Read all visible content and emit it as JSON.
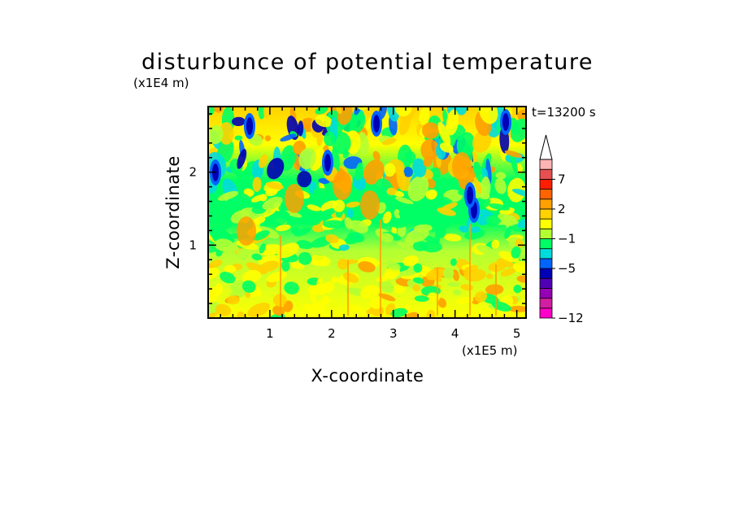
{
  "chart_data": {
    "type": "heatmap",
    "title": "disturbunce of potential temperature",
    "xlabel": "X-coordinate",
    "ylabel": "Z-coordinate",
    "x_unit": "(x1E5 m)",
    "y_unit": "(x1E4 m)",
    "time_label": "t=13200 s",
    "xlim": [
      0,
      5.15
    ],
    "ylim": [
      0,
      2.9
    ],
    "x_ticks": [
      1,
      2,
      3,
      4,
      5
    ],
    "y_ticks": [
      1,
      2
    ],
    "x_tick_labels": [
      "1",
      "2",
      "3",
      "4",
      "5"
    ],
    "y_tick_labels": [
      "1",
      "2"
    ],
    "colorbar": {
      "levels": [
        -12,
        -11,
        -10,
        -9,
        -7,
        -5,
        -4,
        -3,
        -1,
        0,
        1,
        2,
        3,
        5,
        7,
        9,
        11
      ],
      "colors": [
        "#ff00c8",
        "#d21ea0",
        "#9600b4",
        "#5000b4",
        "#0000b4",
        "#0064ff",
        "#00dcdc",
        "#00ff64",
        "#b4ff32",
        "#ffff00",
        "#ffd200",
        "#ffa000",
        "#ff6400",
        "#ff1e00",
        "#e65050",
        "#ffb4b4"
      ],
      "tick_labels": [
        "-12",
        "-5",
        "-1",
        "2",
        "7"
      ],
      "extend": "max"
    }
  }
}
